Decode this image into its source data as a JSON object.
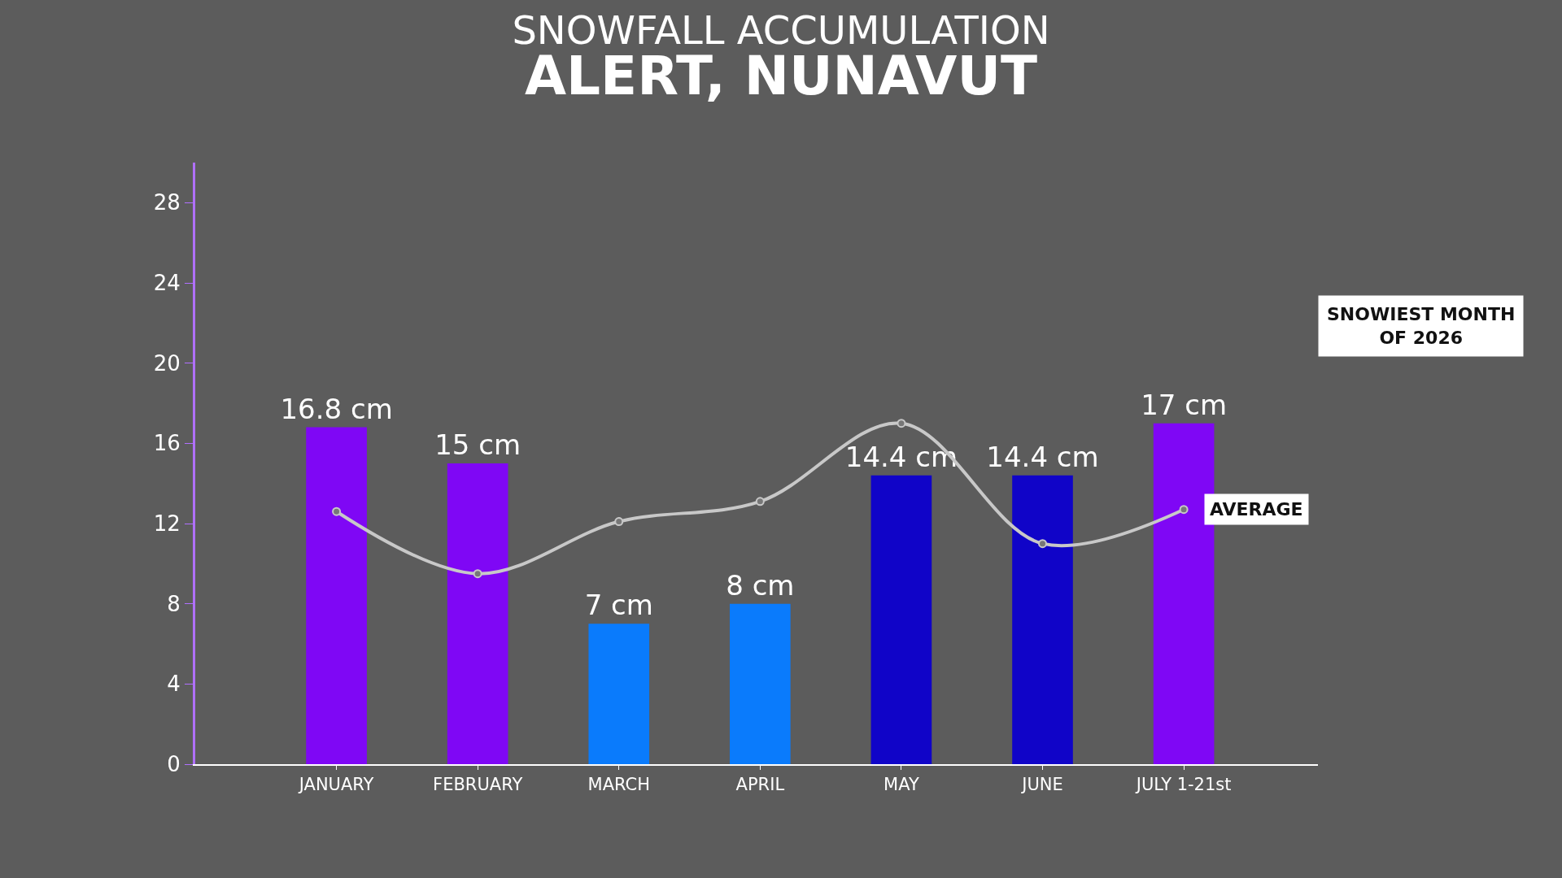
{
  "chart_data": {
    "type": "bar",
    "title": "SNOWFALL ACCUMULATION",
    "subtitle": "ALERT, NUNAVUT",
    "categories": [
      "JANUARY",
      "FEBRUARY",
      "MARCH",
      "APRIL",
      "MAY",
      "JUNE",
      "JULY 1-21st"
    ],
    "series": [
      {
        "values": [
          16.8,
          15,
          7,
          8,
          14.4,
          14.4,
          17
        ],
        "colors": [
          "#7f07f5",
          "#7f07f5",
          "#0a7bfc",
          "#0a7bfc",
          "#1004c8",
          "#1004c8",
          "#7f07f5"
        ],
        "value_labels": [
          "16.8 cm",
          "15 cm",
          "7 cm",
          "8 cm",
          "14.4 cm",
          "14.4 cm",
          "17 cm"
        ]
      },
      {
        "type": "line",
        "name": "AVERAGE",
        "color": "#c8c8c8",
        "values": [
          12.6,
          9.5,
          12.1,
          13.1,
          17.0,
          11.0,
          12.7
        ],
        "marker": "circle"
      }
    ],
    "ylim": [
      0,
      30
    ],
    "yticks": [
      0,
      4,
      8,
      12,
      16,
      20,
      24,
      28
    ],
    "grid": false,
    "annotations": [
      "SNOWIEST MONTH OF 2026"
    ]
  }
}
